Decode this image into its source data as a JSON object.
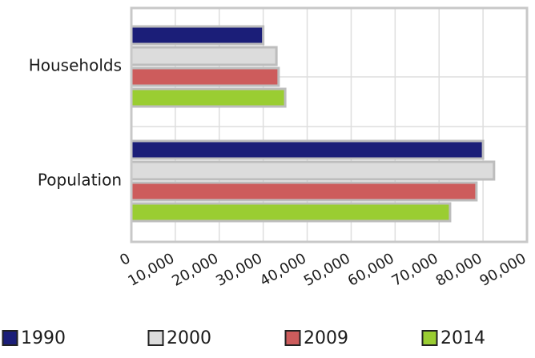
{
  "chart_data": {
    "type": "bar",
    "orientation": "horizontal",
    "categories": [
      "Households",
      "Population"
    ],
    "series": [
      {
        "name": "1990",
        "color": "#1b1e78",
        "values": [
          30000,
          80000
        ]
      },
      {
        "name": "2000",
        "color": "#dcdcdc",
        "values": [
          33000,
          82500
        ]
      },
      {
        "name": "2009",
        "color": "#cd5c5c",
        "values": [
          33500,
          78500
        ]
      },
      {
        "name": "2014",
        "color": "#9acd32",
        "values": [
          35000,
          72500
        ]
      }
    ],
    "xlim": [
      0,
      90000
    ],
    "xticks": [
      0,
      10000,
      20000,
      30000,
      40000,
      50000,
      60000,
      70000,
      80000,
      90000
    ],
    "xtick_labels": [
      "0",
      "10,000",
      "20,000",
      "30,000",
      "40,000",
      "50,000",
      "60,000",
      "70,000",
      "80,000",
      "90,000"
    ],
    "grid": true,
    "legend_position": "bottom",
    "title": "",
    "xlabel": "",
    "ylabel": ""
  }
}
